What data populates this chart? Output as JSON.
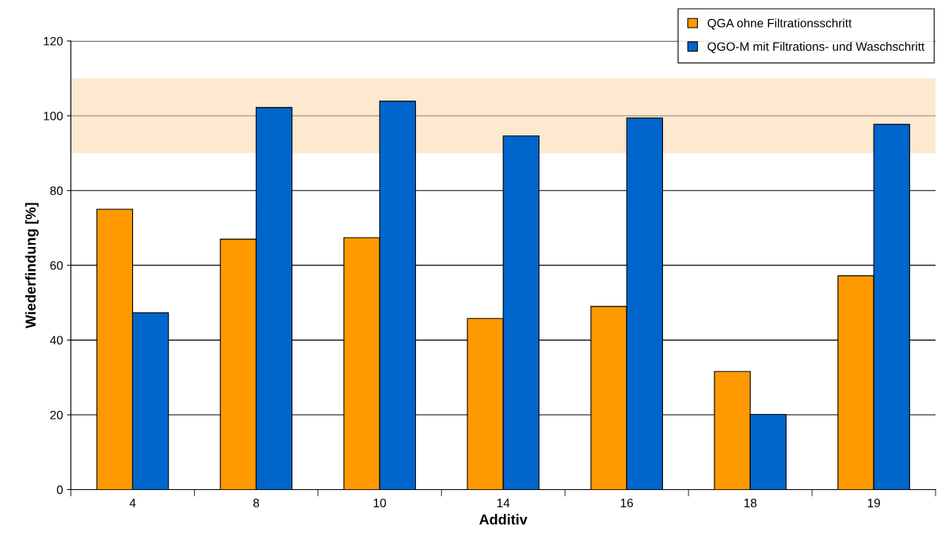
{
  "chart_data": {
    "type": "bar",
    "xlabel": "Additiv",
    "ylabel": "Wiederfindung [%]",
    "categories": [
      "4",
      "8",
      "10",
      "14",
      "16",
      "18",
      "19"
    ],
    "series": [
      {
        "name": "QGA ohne Filtrationsschritt",
        "color": "#ff9900",
        "values": [
          75.0,
          67.0,
          67.4,
          45.8,
          49.0,
          31.6,
          57.2
        ]
      },
      {
        "name": "QGO-M mit Filtrations- und Waschschritt",
        "color": "#0066cc",
        "values": [
          47.3,
          102.2,
          103.9,
          94.6,
          99.4,
          20.1,
          97.7
        ]
      }
    ],
    "ylim": [
      0,
      120
    ],
    "yticks": [
      0,
      20,
      40,
      60,
      80,
      100,
      120
    ],
    "bands": [
      {
        "axis": "y",
        "from": 90,
        "to": 110,
        "color": "#fcd9b0"
      }
    ],
    "grid": "y",
    "legend": "top right"
  }
}
